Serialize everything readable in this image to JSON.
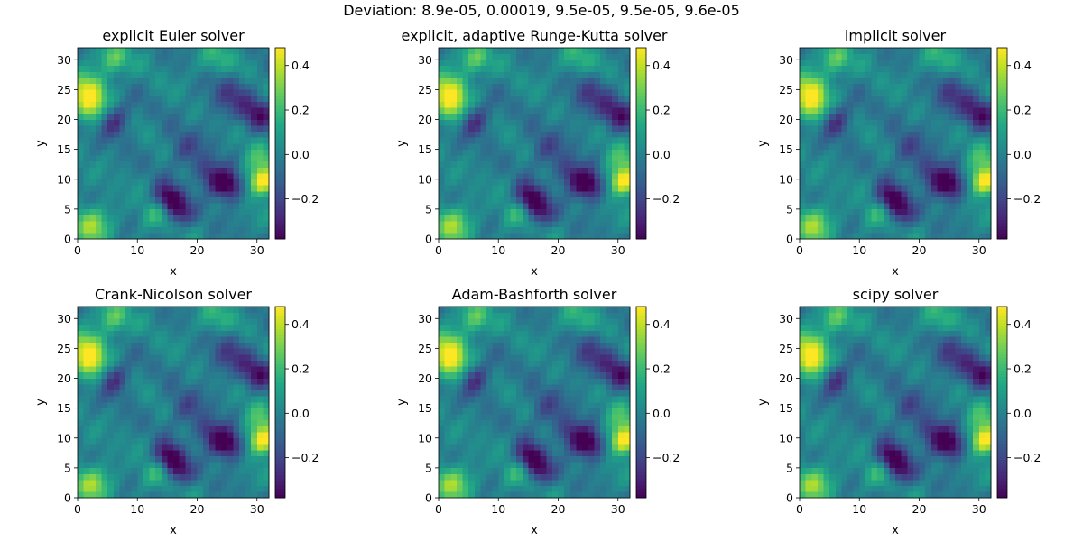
{
  "figure": {
    "suptitle": "Deviation: 8.9e-05, 0.00019, 9.5e-05, 9.5e-05, 9.6e-05"
  },
  "chart_data": [
    {
      "type": "heatmap",
      "title": "explicit Euler solver",
      "xlabel": "x",
      "ylabel": "y",
      "xlim": [
        0,
        32
      ],
      "ylim": [
        0,
        32
      ],
      "xticks": [
        0,
        10,
        20,
        30
      ],
      "yticks": [
        0,
        5,
        10,
        15,
        20,
        25,
        30
      ],
      "colormap": "viridis",
      "colorbar": {
        "range": [
          -0.38,
          0.48
        ],
        "ticks": [
          -0.2,
          0.0,
          0.2,
          0.4
        ]
      }
    },
    {
      "type": "heatmap",
      "title": "explicit, adaptive Runge-Kutta solver",
      "xlabel": "x",
      "ylabel": "y",
      "xlim": [
        0,
        32
      ],
      "ylim": [
        0,
        32
      ],
      "xticks": [
        0,
        10,
        20,
        30
      ],
      "yticks": [
        0,
        5,
        10,
        15,
        20,
        25,
        30
      ],
      "colormap": "viridis",
      "colorbar": {
        "range": [
          -0.38,
          0.48
        ],
        "ticks": [
          -0.2,
          0.0,
          0.2,
          0.4
        ]
      }
    },
    {
      "type": "heatmap",
      "title": "implicit solver",
      "xlabel": "x",
      "ylabel": "y",
      "xlim": [
        0,
        32
      ],
      "ylim": [
        0,
        32
      ],
      "xticks": [
        0,
        10,
        20,
        30
      ],
      "yticks": [
        0,
        5,
        10,
        15,
        20,
        25,
        30
      ],
      "colormap": "viridis",
      "colorbar": {
        "range": [
          -0.38,
          0.48
        ],
        "ticks": [
          -0.2,
          0.0,
          0.2,
          0.4
        ]
      }
    },
    {
      "type": "heatmap",
      "title": "Crank-Nicolson solver",
      "xlabel": "x",
      "ylabel": "y",
      "xlim": [
        0,
        32
      ],
      "ylim": [
        0,
        32
      ],
      "xticks": [
        0,
        10,
        20,
        30
      ],
      "yticks": [
        0,
        5,
        10,
        15,
        20,
        25,
        30
      ],
      "colormap": "viridis",
      "colorbar": {
        "range": [
          -0.38,
          0.48
        ],
        "ticks": [
          -0.2,
          0.0,
          0.2,
          0.4
        ]
      }
    },
    {
      "type": "heatmap",
      "title": "Adam-Bashforth solver",
      "xlabel": "x",
      "ylabel": "y",
      "xlim": [
        0,
        32
      ],
      "ylim": [
        0,
        32
      ],
      "xticks": [
        0,
        10,
        20,
        30
      ],
      "yticks": [
        0,
        5,
        10,
        15,
        20,
        25,
        30
      ],
      "colormap": "viridis",
      "colorbar": {
        "range": [
          -0.38,
          0.48
        ],
        "ticks": [
          -0.2,
          0.0,
          0.2,
          0.4
        ]
      }
    },
    {
      "type": "heatmap",
      "title": "scipy solver",
      "xlabel": "x",
      "ylabel": "y",
      "xlim": [
        0,
        32
      ],
      "ylim": [
        0,
        32
      ],
      "xticks": [
        0,
        10,
        20,
        30
      ],
      "yticks": [
        0,
        5,
        10,
        15,
        20,
        25,
        30
      ],
      "colormap": "viridis",
      "colorbar": {
        "range": [
          -0.38,
          0.48
        ],
        "ticks": [
          -0.2,
          0.0,
          0.2,
          0.4
        ]
      }
    }
  ]
}
